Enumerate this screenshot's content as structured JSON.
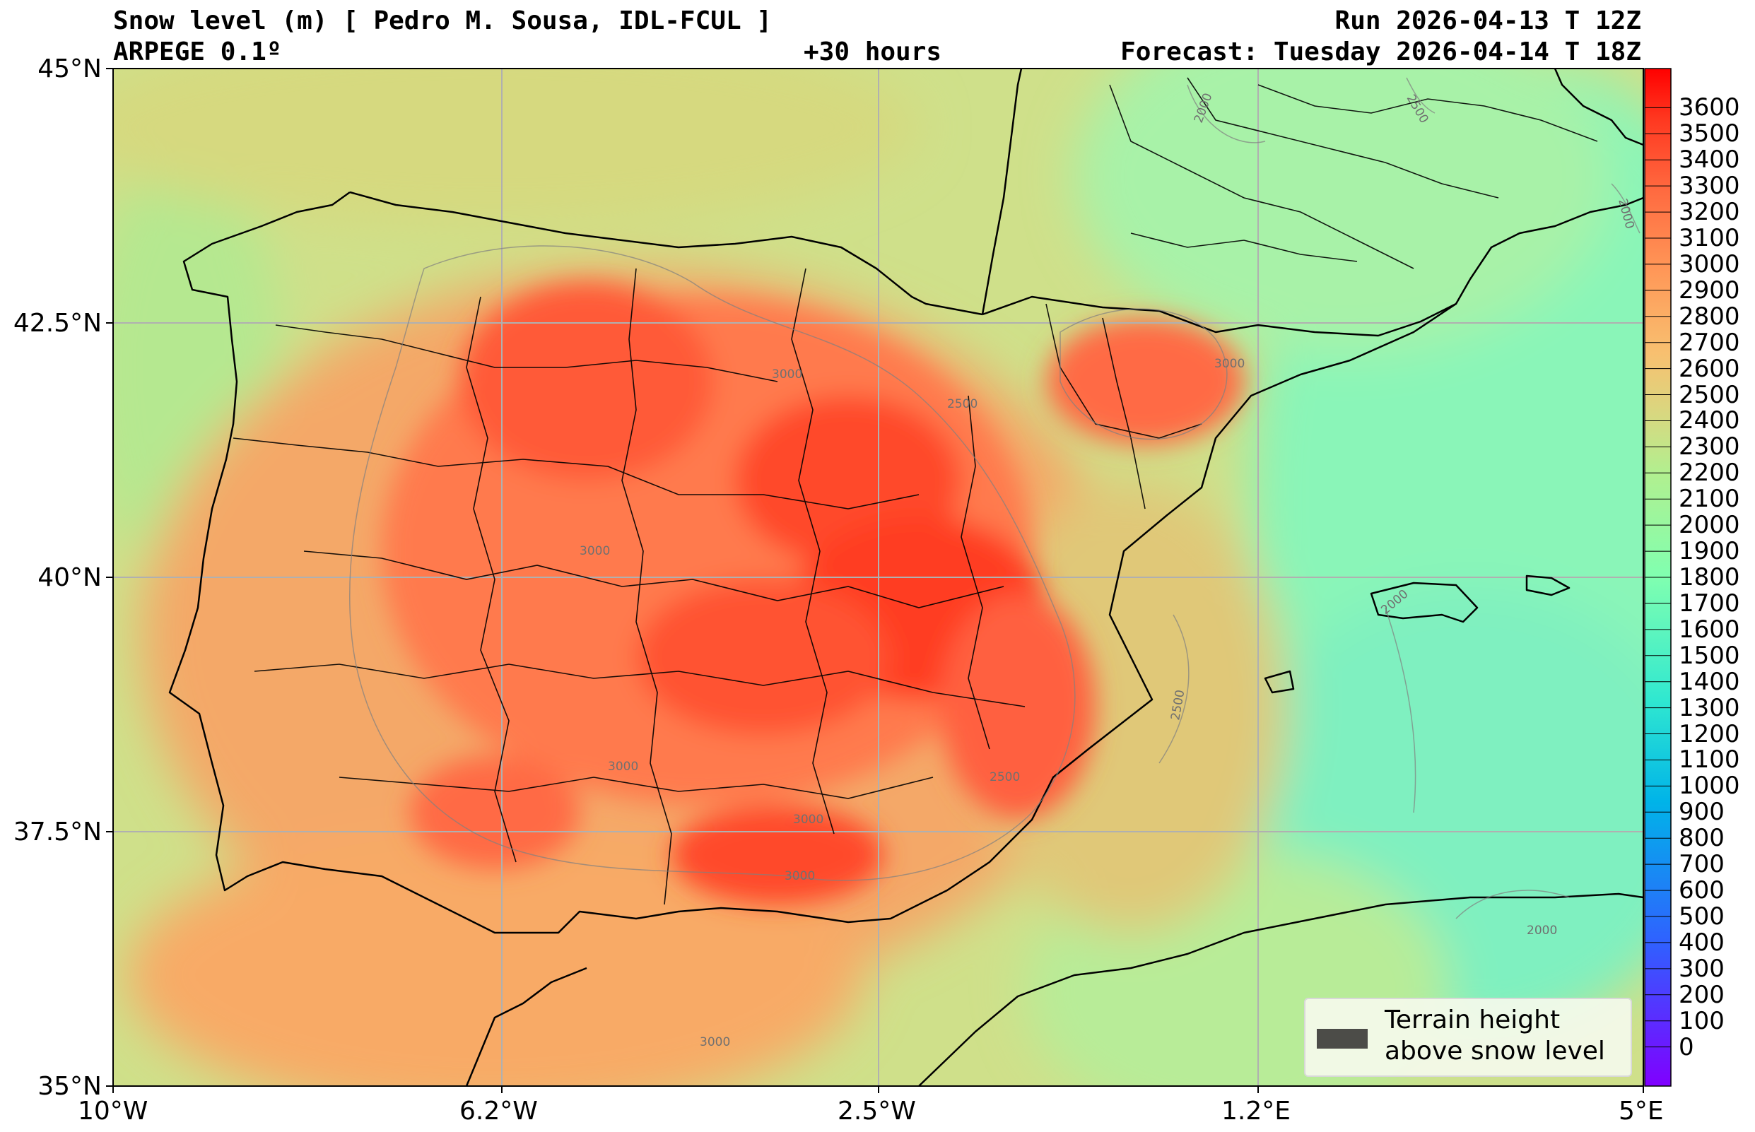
{
  "header": {
    "title_left": "Snow level (m) [ Pedro M. Sousa, IDL-FCUL ]",
    "subtitle_left": "ARPEGE 0.1º",
    "lead_time": "+30 hours",
    "run": "Run 2026-04-13 T 12Z",
    "forecast": "Forecast: Tuesday 2026-04-14 T 18Z"
  },
  "axes": {
    "lat_labels": [
      "45°N",
      "42.5°N",
      "40°N",
      "37.5°N",
      "35°N"
    ],
    "lon_labels": [
      "10°W",
      "6.2°W",
      "2.5°W",
      "1.2°E",
      "5°E"
    ]
  },
  "colorbar": {
    "levels": [
      3600,
      3500,
      3400,
      3300,
      3200,
      3100,
      3000,
      2900,
      2800,
      2700,
      2600,
      2500,
      2400,
      2300,
      2200,
      2100,
      2000,
      1900,
      1800,
      1700,
      1600,
      1500,
      1400,
      1300,
      1200,
      1100,
      1000,
      900,
      800,
      700,
      600,
      500,
      400,
      300,
      200,
      100,
      0
    ],
    "colors": {
      "low": "#8000ff",
      "mid": "#80ffc0",
      "high": "#ff0000"
    }
  },
  "contour_labels": [
    "3000",
    "2500",
    "3000",
    "3000",
    "3000",
    "3000",
    "3000",
    "2500",
    "2000",
    "2000",
    "2000",
    "2500",
    "2000",
    "3000",
    "2500"
  ],
  "legend": {
    "line1": "Terrain height",
    "line2": "above snow level",
    "swatch_color": "#4c4c48"
  }
}
